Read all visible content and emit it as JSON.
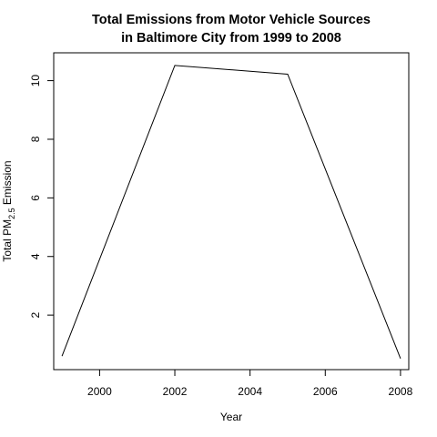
{
  "chart_data": {
    "type": "line",
    "title_lines": [
      "Total Emissions from Motor Vehicle Sources",
      "in Baltimore City from 1999 to 2008"
    ],
    "xlabel": "Year",
    "ylabel": {
      "prefix": "Total PM",
      "subscript": "2.5",
      "suffix": " Emission"
    },
    "x": [
      1999,
      2002,
      2005,
      2008
    ],
    "y": [
      0.6,
      10.52,
      10.22,
      0.52
    ],
    "xlim": [
      1998.78,
      2008.22
    ],
    "ylim": [
      0.14,
      10.95
    ],
    "xticks": [
      2000,
      2002,
      2004,
      2006,
      2008
    ],
    "yticks": [
      2,
      4,
      6,
      8,
      10
    ],
    "line_color": "#000000",
    "grid": false,
    "legend": "none",
    "box": true
  }
}
